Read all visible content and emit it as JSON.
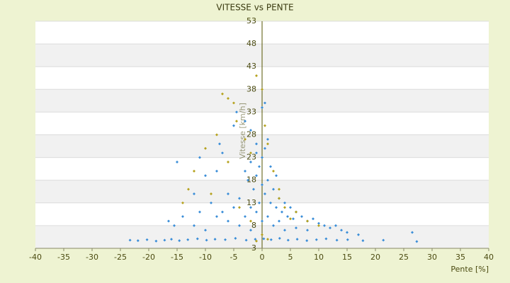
{
  "chart_data": {
    "type": "scatter",
    "title": "VITESSE vs PENTE",
    "xlabel": "Pente [%]",
    "ylabel": "Vitesse [km/h]",
    "xlim": [
      -40,
      40
    ],
    "ylim": [
      3,
      53
    ],
    "xticks": [
      -40,
      -35,
      -30,
      -25,
      -20,
      -15,
      -10,
      -5,
      0,
      5,
      10,
      15,
      20,
      25,
      30,
      35,
      40
    ],
    "yticks": [
      3,
      8,
      13,
      18,
      23,
      28,
      33,
      38,
      43,
      48,
      53
    ],
    "grid": true,
    "series": [
      {
        "color": "#3b8ed8",
        "x": [
          -23.3,
          -21.9,
          -20.3,
          -18.7,
          -17.2,
          -16,
          -14.6,
          -13.1,
          -11.4,
          -9.8,
          -8.3,
          -6.5,
          -4.7,
          -2.8,
          -1.2,
          0.3,
          1.6,
          3.1,
          4.6,
          6.2,
          7.9,
          9.6,
          11.3,
          13.2,
          15.1,
          17.8,
          21.4,
          27.3,
          26.5,
          -15,
          -16.5,
          -15.5,
          -11,
          -10,
          -12,
          -8,
          -7,
          -7.5,
          -5,
          -4.5,
          -3,
          -2,
          0,
          0.5,
          1,
          -1,
          -3,
          -2.5,
          -2,
          -1.5,
          -1,
          -0.5,
          0,
          0.5,
          1,
          1.5,
          2,
          2.5,
          3,
          3.5,
          4,
          4.5,
          5,
          5.5,
          6,
          7,
          8,
          9,
          10,
          11,
          12,
          13,
          14,
          -4,
          -5,
          -6,
          -7,
          -8,
          -9,
          -6,
          -3,
          -2,
          -1,
          0,
          1,
          2,
          3,
          -1,
          0,
          0.5,
          -0.5,
          1.5,
          2.5,
          -2,
          -4,
          4,
          6,
          8,
          15,
          17,
          -10,
          -12,
          -14,
          -11
        ],
        "y": [
          4.8,
          4.7,
          4.9,
          4.6,
          4.8,
          5,
          4.7,
          4.9,
          5.1,
          4.8,
          5,
          4.9,
          5.2,
          4.8,
          5,
          5.1,
          4.9,
          5.2,
          4.8,
          5,
          4.7,
          4.9,
          5.1,
          4.8,
          4.9,
          4.7,
          4.8,
          4.5,
          6.5,
          22,
          9,
          8,
          23,
          19,
          15,
          20,
          24,
          26,
          30,
          33,
          31,
          29,
          34,
          35,
          27,
          26,
          20,
          18,
          22,
          16,
          19,
          21,
          17,
          15,
          18,
          13,
          16,
          12,
          14,
          11,
          13,
          10,
          12,
          9.5,
          11,
          10,
          9,
          9.5,
          8.5,
          8,
          7.5,
          8,
          7,
          14,
          12,
          15,
          11,
          10,
          13,
          9,
          10,
          12,
          11,
          9,
          10,
          8,
          9,
          24,
          23,
          25,
          13,
          21,
          19,
          7,
          8,
          7,
          7.5,
          7,
          6.5,
          6,
          7,
          8,
          10,
          11
        ]
      },
      {
        "color": "#b5a21e",
        "x": [
          -7,
          -6,
          -5,
          -4.5,
          -8,
          -10,
          -12,
          -13,
          -9,
          -6,
          -3,
          -2,
          0,
          0.5,
          1,
          2,
          3,
          4,
          6,
          8,
          -4,
          -2,
          0,
          1,
          -1,
          5,
          10,
          -14,
          -1,
          3
        ],
        "y": [
          37,
          36,
          35,
          31,
          28,
          25,
          20,
          16,
          15,
          22,
          27,
          24,
          38,
          30,
          26,
          20,
          14,
          12,
          11,
          9,
          12,
          9,
          6,
          5,
          4.6,
          9.5,
          8,
          13,
          41,
          16
        ]
      }
    ]
  }
}
